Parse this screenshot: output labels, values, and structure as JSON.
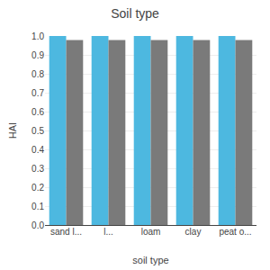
{
  "chart_data": {
    "type": "bar",
    "title": "Soil type",
    "xlabel": "soil type",
    "ylabel": "HAI",
    "categories": [
      "sand l...",
      "l...",
      "loam",
      "clay",
      "peat o..."
    ],
    "series": [
      {
        "color": "#4db8e0",
        "values": [
          1.0,
          1.0,
          1.0,
          1.0,
          1.0
        ]
      },
      {
        "color": "#7a7a7a",
        "values": [
          0.978,
          0.978,
          0.978,
          0.978,
          0.978
        ]
      }
    ],
    "ylim": [
      0,
      1.0
    ],
    "yticks": [
      {
        "value": 0,
        "label": "0.0"
      },
      0.1,
      0.2,
      0.3,
      0.4,
      0.5,
      0.6,
      0.7,
      0.8,
      0.9,
      {
        "value": 1,
        "label": "1.0"
      }
    ],
    "grid": true
  }
}
